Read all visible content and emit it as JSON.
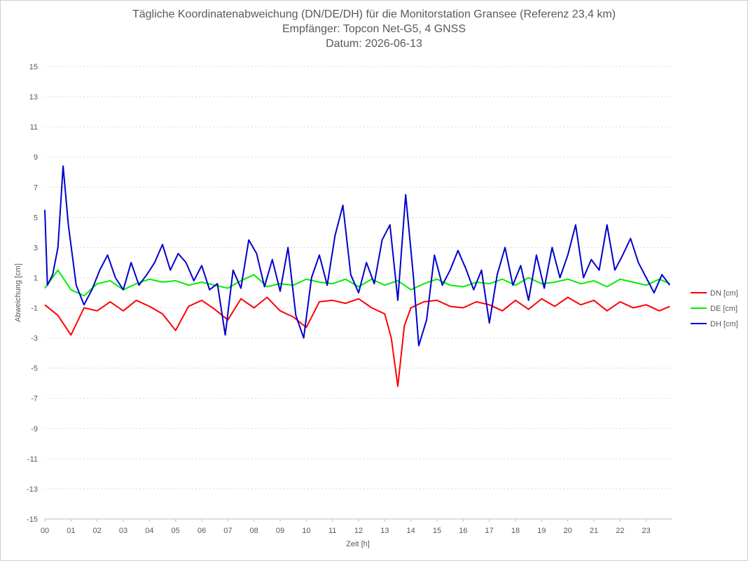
{
  "chart_data": {
    "type": "line",
    "title": "Tägliche Koordinatenabweichung (DN/DE/DH) für die Monitorstation Gransee (Referenz 23,4 km)",
    "subtitle": "Empfänger: Topcon Net-G5, 4 GNSS",
    "date_line": "Datum: 2026-06-13",
    "xlabel": "Zeit [h]",
    "ylabel": "Abweichung [cm]",
    "xlim": [
      0,
      24
    ],
    "ylim": [
      -15,
      15
    ],
    "y_ticks": [
      "15",
      "13",
      "11",
      "9",
      "7",
      "5",
      "3",
      "1",
      "-1",
      "-3",
      "-5",
      "-7",
      "-9",
      "-11",
      "-13",
      "-15"
    ],
    "x_ticks": [
      "00",
      "01",
      "02",
      "03",
      "04",
      "05",
      "06",
      "07",
      "08",
      "09",
      "10",
      "11",
      "12",
      "13",
      "14",
      "15",
      "16",
      "17",
      "18",
      "19",
      "20",
      "21",
      "22",
      "23"
    ],
    "grid": "horizontal-dotted",
    "legend_position": "right",
    "series": [
      {
        "name": "DN [cm]",
        "color": "#ff0000",
        "x": [
          0,
          0.5,
          1,
          1.5,
          2,
          2.5,
          3,
          3.5,
          4,
          4.5,
          5,
          5.5,
          6,
          6.5,
          7,
          7.5,
          8,
          8.5,
          9,
          9.5,
          10,
          10.5,
          11,
          11.5,
          12,
          12.5,
          13,
          13.25,
          13.5,
          13.75,
          14,
          14.5,
          15,
          15.5,
          16,
          16.5,
          17,
          17.5,
          18,
          18.5,
          19,
          19.5,
          20,
          20.5,
          21,
          21.5,
          22,
          22.5,
          23,
          23.5,
          23.9
        ],
        "y": [
          -0.8,
          -1.5,
          -2.8,
          -1.0,
          -1.2,
          -0.6,
          -1.2,
          -0.5,
          -0.9,
          -1.4,
          -2.5,
          -0.9,
          -0.5,
          -1.1,
          -1.8,
          -0.4,
          -1.0,
          -0.3,
          -1.2,
          -1.6,
          -2.3,
          -0.6,
          -0.5,
          -0.7,
          -0.4,
          -1.0,
          -1.4,
          -3.0,
          -6.2,
          -2.2,
          -1.0,
          -0.6,
          -0.5,
          -0.9,
          -1.0,
          -0.6,
          -0.8,
          -1.2,
          -0.5,
          -1.1,
          -0.4,
          -0.9,
          -0.3,
          -0.8,
          -0.5,
          -1.2,
          -0.6,
          -1.0,
          -0.8,
          -1.2,
          -0.9
        ]
      },
      {
        "name": "DE [cm]",
        "color": "#00ee00",
        "x": [
          0,
          0.5,
          1,
          1.5,
          2,
          2.5,
          3,
          3.5,
          4,
          4.5,
          5,
          5.5,
          6,
          6.5,
          7,
          7.5,
          8,
          8.5,
          9,
          9.5,
          10,
          10.5,
          11,
          11.5,
          12,
          12.5,
          13,
          13.5,
          14,
          14.5,
          15,
          15.5,
          16,
          16.5,
          17,
          17.5,
          18,
          18.5,
          19,
          19.5,
          20,
          20.5,
          21,
          21.5,
          22,
          22.5,
          23,
          23.5,
          23.9
        ],
        "y": [
          0.3,
          1.5,
          0.2,
          -0.2,
          0.6,
          0.8,
          0.2,
          0.6,
          0.9,
          0.7,
          0.8,
          0.5,
          0.7,
          0.5,
          0.3,
          0.8,
          1.2,
          0.4,
          0.6,
          0.5,
          0.9,
          0.7,
          0.6,
          0.9,
          0.4,
          0.9,
          0.5,
          0.8,
          0.2,
          0.6,
          0.9,
          0.5,
          0.4,
          0.7,
          0.6,
          0.9,
          0.5,
          1.0,
          0.6,
          0.7,
          0.9,
          0.6,
          0.8,
          0.4,
          0.9,
          0.7,
          0.5,
          0.9,
          0.6
        ]
      },
      {
        "name": "DH [cm]",
        "color": "#0000cc",
        "x": [
          0,
          0.1,
          0.3,
          0.5,
          0.7,
          0.9,
          1.2,
          1.5,
          1.8,
          2.1,
          2.4,
          2.7,
          3,
          3.3,
          3.6,
          3.9,
          4.2,
          4.5,
          4.8,
          5.1,
          5.4,
          5.7,
          6,
          6.3,
          6.6,
          6.9,
          7.2,
          7.5,
          7.8,
          8.1,
          8.4,
          8.7,
          9,
          9.3,
          9.6,
          9.9,
          10.2,
          10.5,
          10.8,
          11.1,
          11.4,
          11.7,
          12,
          12.3,
          12.6,
          12.9,
          13.2,
          13.5,
          13.8,
          14.1,
          14.3,
          14.6,
          14.9,
          15.2,
          15.5,
          15.8,
          16.1,
          16.4,
          16.7,
          17,
          17.3,
          17.6,
          17.9,
          18.2,
          18.5,
          18.8,
          19.1,
          19.4,
          19.7,
          20,
          20.3,
          20.6,
          20.9,
          21.2,
          21.5,
          21.8,
          22.1,
          22.4,
          22.7,
          23,
          23.3,
          23.6,
          23.9
        ],
        "y": [
          5.5,
          0.5,
          1.2,
          3.0,
          8.4,
          4.5,
          0.5,
          -0.8,
          0.2,
          1.5,
          2.5,
          1.0,
          0.2,
          2.0,
          0.5,
          1.2,
          2.0,
          3.2,
          1.5,
          2.6,
          2.0,
          0.8,
          1.8,
          0.2,
          0.6,
          -2.8,
          1.5,
          0.3,
          3.5,
          2.6,
          0.4,
          2.2,
          0.1,
          3.0,
          -1.5,
          -3.0,
          1.0,
          2.5,
          0.5,
          3.8,
          5.8,
          1.2,
          0.0,
          2.0,
          0.6,
          3.5,
          4.5,
          -0.5,
          6.5,
          1.0,
          -3.5,
          -1.8,
          2.5,
          0.5,
          1.5,
          2.8,
          1.6,
          0.2,
          1.5,
          -2.0,
          1.2,
          3.0,
          0.5,
          1.8,
          -0.5,
          2.5,
          0.3,
          3.0,
          1.0,
          2.5,
          4.5,
          1.0,
          2.2,
          1.5,
          4.5,
          1.5,
          2.5,
          3.6,
          2.0,
          1.0,
          0.0,
          1.2,
          0.5
        ]
      }
    ]
  }
}
